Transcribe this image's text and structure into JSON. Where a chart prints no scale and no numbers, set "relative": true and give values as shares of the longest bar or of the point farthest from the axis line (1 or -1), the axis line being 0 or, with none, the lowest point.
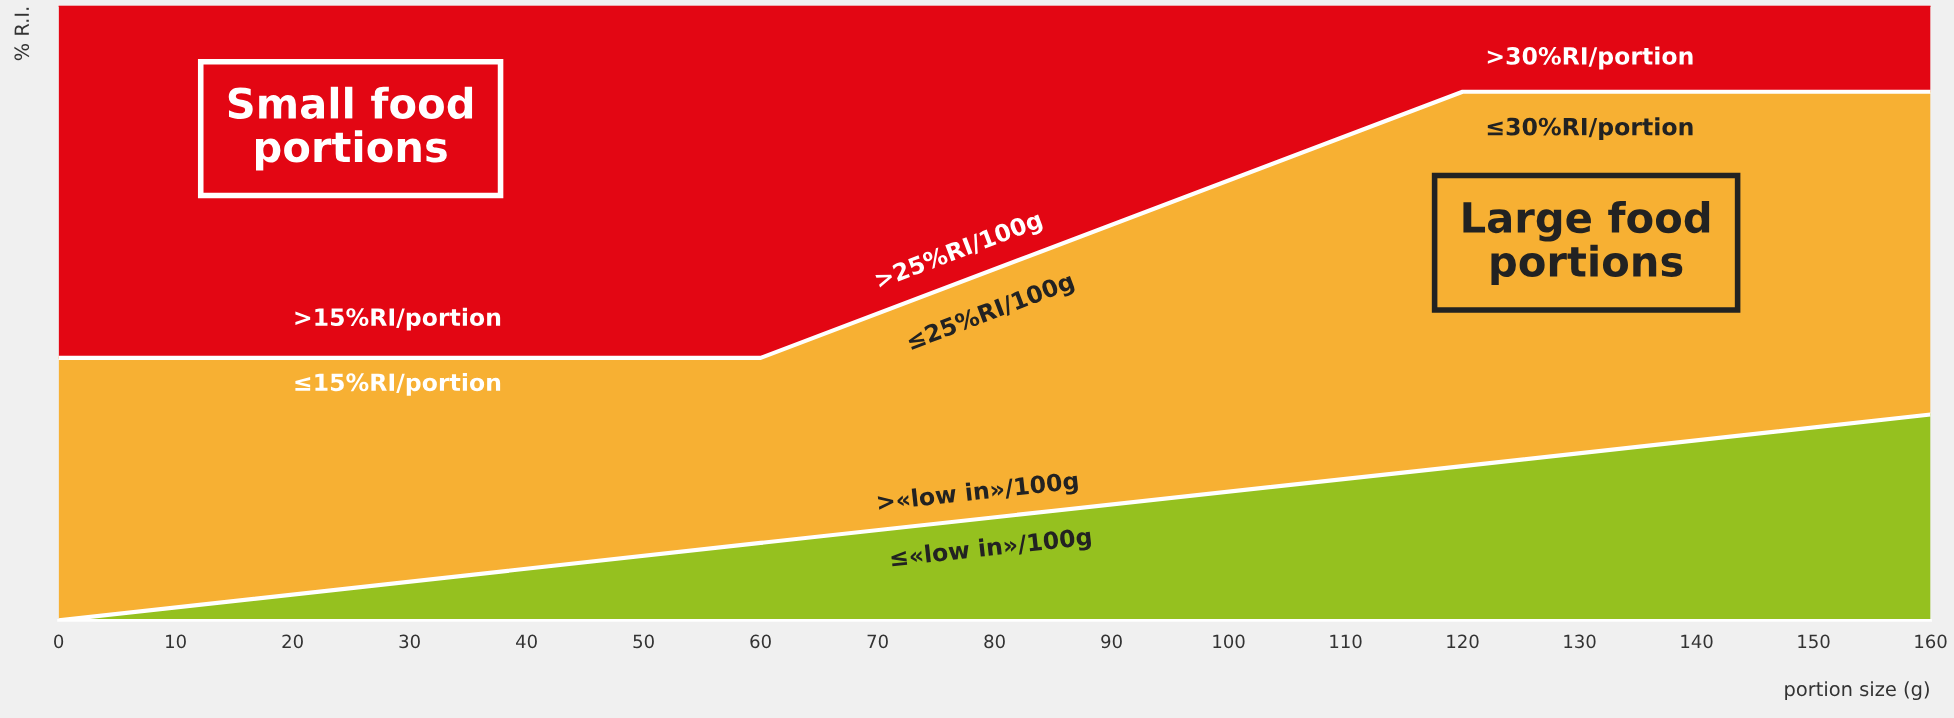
{
  "chart_data": {
    "type": "area",
    "relative": true,
    "xlabel": "portion size (g)",
    "ylabel": "% R.I.",
    "x": [
      0,
      60,
      120,
      160
    ],
    "xlim": [
      0,
      160
    ],
    "xticks": [
      0,
      10,
      20,
      30,
      40,
      50,
      60,
      70,
      80,
      90,
      100,
      110,
      120,
      130,
      140,
      150,
      160
    ],
    "series": [
      {
        "color": "#95c11f",
        "values": [
          0,
          0.126,
          0.251,
          0.335
        ]
      },
      {
        "color": "#f7b033",
        "values": [
          0.427,
          0.427,
          0.86,
          0.86
        ]
      },
      {
        "color": "#e30613",
        "values": [
          1,
          1,
          1,
          1
        ]
      }
    ],
    "annotations": [
      "Small food\nportions",
      "Large food\nportions",
      ">30%RI/portion",
      "≤30%RI/portion",
      ">25%RI/100g",
      "≤25%RI/100g",
      ">15%RI/portion",
      "≤15%RI/portion",
      ">«low in»/100g",
      "≤«low in»/100g"
    ]
  }
}
